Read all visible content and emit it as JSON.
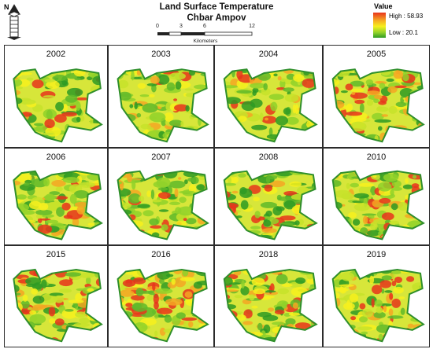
{
  "map": {
    "title_line1": "Land Surface Temperature",
    "title_line2": "Chbar Ampov",
    "north_label": "N",
    "scale": {
      "ticks": [
        "0",
        "3",
        "6",
        "12"
      ],
      "unit": "Kilometers"
    },
    "legend": {
      "title": "Value",
      "high_label": "High : 58.93",
      "low_label": "Low : 20.1",
      "colors": [
        "#e8341c",
        "#f5a623",
        "#f7f01d",
        "#8fd12a",
        "#2e9a24"
      ]
    },
    "panels": [
      {
        "year": "2002",
        "hot_fraction": 0.35
      },
      {
        "year": "2003",
        "hot_fraction": 0.3
      },
      {
        "year": "2004",
        "hot_fraction": 0.45
      },
      {
        "year": "2005",
        "hot_fraction": 0.4
      },
      {
        "year": "2006",
        "hot_fraction": 0.35
      },
      {
        "year": "2007",
        "hot_fraction": 0.3
      },
      {
        "year": "2008",
        "hot_fraction": 0.3
      },
      {
        "year": "2010",
        "hot_fraction": 0.35
      },
      {
        "year": "2015",
        "hot_fraction": 0.55
      },
      {
        "year": "2016",
        "hot_fraction": 0.5
      },
      {
        "year": "2018",
        "hot_fraction": 0.55
      },
      {
        "year": "2019",
        "hot_fraction": 0.5
      }
    ]
  }
}
